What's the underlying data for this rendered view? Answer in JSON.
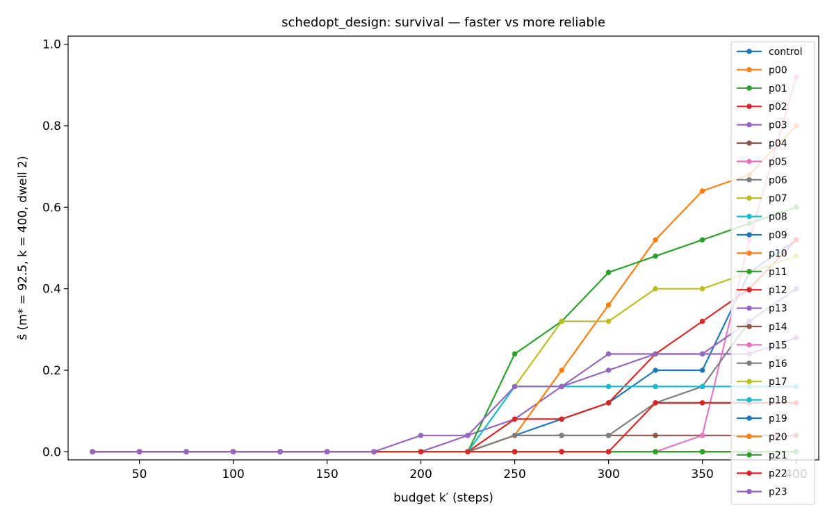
{
  "chart_data": {
    "type": "line",
    "title": "schedopt_design: survival — faster vs more reliable",
    "xlabel": "budget k′ (steps)",
    "ylabel": "ŝ (m* = 92.5, k = 400, dwell 2)",
    "xlim": [
      12,
      412
    ],
    "ylim": [
      -0.02,
      1.02
    ],
    "xticks": [
      50,
      100,
      150,
      200,
      250,
      300,
      350,
      400
    ],
    "yticks": [
      0.0,
      0.2,
      0.4,
      0.6,
      0.8,
      1.0
    ],
    "grid": false,
    "legend_position": "top-right",
    "x": [
      25,
      50,
      75,
      100,
      125,
      150,
      175,
      200,
      225,
      250,
      275,
      300,
      325,
      350,
      375,
      400
    ],
    "series": [
      {
        "name": "control",
        "color": "#1f77b4",
        "values": [
          0,
          0,
          0,
          0,
          0,
          0,
          0,
          0,
          0,
          0.04,
          0.08,
          0.12,
          0.2,
          0.2,
          0.44,
          0.52
        ]
      },
      {
        "name": "p00",
        "color": "#ff7f0e",
        "values": [
          0,
          0,
          0,
          0,
          0,
          0,
          0,
          0,
          0,
          0,
          0,
          0,
          0,
          0,
          0,
          0
        ]
      },
      {
        "name": "p01",
        "color": "#2ca02c",
        "values": [
          0,
          0,
          0,
          0,
          0,
          0,
          0,
          0,
          0,
          0,
          0,
          0,
          0,
          0,
          0,
          0
        ]
      },
      {
        "name": "p02",
        "color": "#d62728",
        "values": [
          0,
          0,
          0,
          0,
          0,
          0,
          0,
          0,
          0,
          0,
          0,
          0,
          0,
          0,
          0,
          0
        ]
      },
      {
        "name": "p03",
        "color": "#9467bd",
        "values": [
          0,
          0,
          0,
          0,
          0,
          0,
          0,
          0,
          0.04,
          0.08,
          0.16,
          0.2,
          0.24,
          0.24,
          0.24,
          0.28
        ]
      },
      {
        "name": "p04",
        "color": "#8c564b",
        "values": [
          0,
          0,
          0,
          0,
          0,
          0,
          0,
          0,
          0,
          0.04,
          0.04,
          0.04,
          0.04,
          0.04,
          0.04,
          0.04
        ]
      },
      {
        "name": "p05",
        "color": "#e377c2",
        "values": [
          0,
          0,
          0,
          0,
          0,
          0,
          0,
          0,
          0,
          0,
          0,
          0,
          0,
          0,
          0,
          0
        ]
      },
      {
        "name": "p06",
        "color": "#7f7f7f",
        "values": [
          0,
          0,
          0,
          0,
          0,
          0,
          0,
          0,
          0,
          0,
          0,
          0,
          0,
          0,
          0,
          0
        ]
      },
      {
        "name": "p07",
        "color": "#bcbd22",
        "values": [
          0,
          0,
          0,
          0,
          0,
          0,
          0,
          0,
          0,
          0,
          0,
          0,
          0,
          0,
          0,
          0
        ]
      },
      {
        "name": "p08",
        "color": "#17becf",
        "values": [
          0,
          0,
          0,
          0,
          0,
          0,
          0,
          0,
          0,
          0,
          0,
          0,
          0,
          0,
          0,
          0
        ]
      },
      {
        "name": "p09",
        "color": "#1f77b4",
        "values": [
          0,
          0,
          0,
          0,
          0,
          0,
          0,
          0,
          0,
          0,
          0,
          0,
          0,
          0,
          0,
          0
        ]
      },
      {
        "name": "p10",
        "color": "#ff7f0e",
        "values": [
          0,
          0,
          0,
          0,
          0,
          0,
          0,
          0,
          0,
          0.04,
          0.2,
          0.36,
          0.52,
          0.64,
          0.68,
          0.8
        ]
      },
      {
        "name": "p11",
        "color": "#2ca02c",
        "values": [
          0,
          0,
          0,
          0,
          0,
          0,
          0,
          0,
          0,
          0.24,
          0.32,
          0.44,
          0.48,
          0.52,
          0.56,
          0.6
        ]
      },
      {
        "name": "p12",
        "color": "#d62728",
        "values": [
          0,
          0,
          0,
          0,
          0,
          0,
          0,
          0,
          0,
          0.08,
          0.08,
          0.12,
          0.24,
          0.32,
          0.4,
          0.52
        ]
      },
      {
        "name": "p13",
        "color": "#9467bd",
        "values": [
          0,
          0,
          0,
          0,
          0,
          0,
          0,
          0,
          0,
          0,
          0,
          0,
          0,
          0,
          0,
          0
        ]
      },
      {
        "name": "p14",
        "color": "#8c564b",
        "values": [
          0,
          0,
          0,
          0,
          0,
          0,
          0,
          0,
          0,
          0,
          0,
          0,
          0,
          0,
          0,
          0
        ]
      },
      {
        "name": "p15",
        "color": "#e377c2",
        "values": [
          0,
          0,
          0,
          0,
          0,
          0,
          0,
          0,
          0,
          0,
          0,
          0,
          0,
          0.04,
          0.52,
          0.92
        ]
      },
      {
        "name": "p16",
        "color": "#7f7f7f",
        "values": [
          0,
          0,
          0,
          0,
          0,
          0,
          0,
          0,
          0,
          0.04,
          0.04,
          0.04,
          0.12,
          0.16,
          0.32,
          0.4
        ]
      },
      {
        "name": "p17",
        "color": "#bcbd22",
        "values": [
          0,
          0,
          0,
          0,
          0,
          0,
          0,
          0,
          0,
          0.16,
          0.32,
          0.32,
          0.4,
          0.4,
          0.44,
          0.48
        ]
      },
      {
        "name": "p18",
        "color": "#17becf",
        "values": [
          0,
          0,
          0,
          0,
          0,
          0,
          0,
          0,
          0,
          0.16,
          0.16,
          0.16,
          0.16,
          0.16,
          0.16,
          0.16
        ]
      },
      {
        "name": "p19",
        "color": "#1f77b4",
        "values": [
          0,
          0,
          0,
          0,
          0,
          0,
          0,
          0,
          0,
          0,
          0,
          0,
          0,
          0,
          0,
          0
        ]
      },
      {
        "name": "p20",
        "color": "#ff7f0e",
        "values": [
          0,
          0,
          0,
          0,
          0,
          0,
          0,
          0,
          0,
          0,
          0,
          0,
          0,
          0,
          0,
          0
        ]
      },
      {
        "name": "p21",
        "color": "#2ca02c",
        "values": [
          0,
          0,
          0,
          0,
          0,
          0,
          0,
          0,
          0,
          0,
          0,
          0,
          0,
          0,
          0,
          0
        ]
      },
      {
        "name": "p22",
        "color": "#d62728",
        "values": [
          0,
          0,
          0,
          0,
          0,
          0,
          0,
          0,
          0,
          0,
          0,
          0,
          0.12,
          0.12,
          0.12,
          0.12
        ]
      },
      {
        "name": "p23",
        "color": "#9467bd",
        "values": [
          0,
          0,
          0,
          0,
          0,
          0,
          0,
          0.04,
          0.04,
          0.16,
          0.16,
          0.24,
          0.24,
          0.24,
          0.32,
          0.4
        ]
      }
    ]
  }
}
